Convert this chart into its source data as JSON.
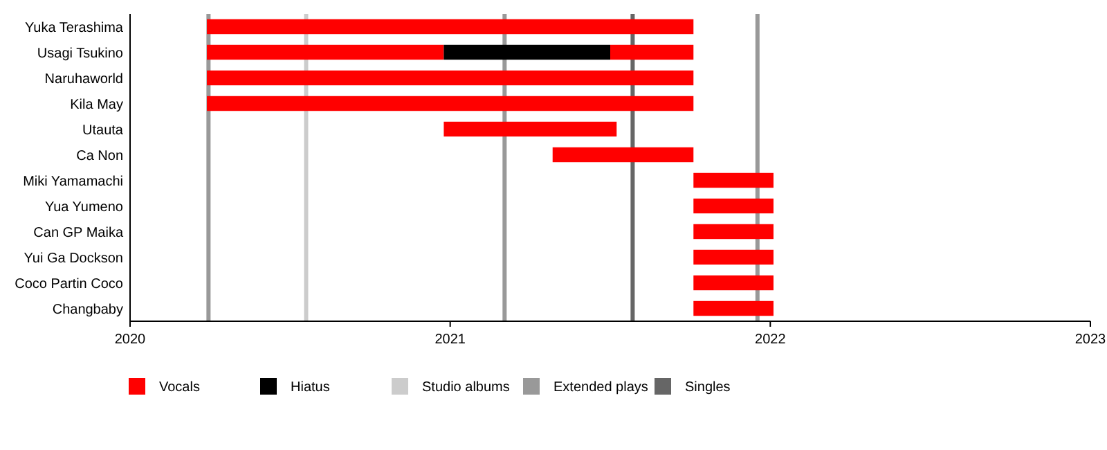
{
  "chart_data": {
    "type": "bar",
    "orientation": "horizontal",
    "categories": [
      "Yuka Terashima",
      "Usagi Tsukino",
      "Naruhaworld",
      "Kila May",
      "Utauta",
      "Ca Non",
      "Miki Yamamachi",
      "Yua Yumeno",
      "Can GP Maika",
      "Yui Ga Dockson",
      "Coco Partin Coco",
      "Changbaby"
    ],
    "series": [
      {
        "name": "Vocals",
        "color": "#ff0000",
        "base": [
          2020.24,
          2020.24,
          2020.24,
          2020.24,
          2020.98,
          2021.32,
          2021.76,
          2021.76,
          2021.76,
          2021.76,
          2021.76,
          2021.76
        ],
        "values": [
          1.52,
          0.74,
          1.52,
          1.52,
          0.54,
          0.44,
          0.25,
          0.25,
          0.25,
          0.25,
          0.25,
          0.25
        ]
      },
      {
        "name": "Hiatus",
        "color": "#000000",
        "base": [
          null,
          2020.98,
          null,
          null,
          null,
          null,
          null,
          null,
          null,
          null,
          null,
          null
        ],
        "values": [
          null,
          0.52,
          null,
          null,
          null,
          null,
          null,
          null,
          null,
          null,
          null,
          null
        ]
      },
      {
        "color": "#ff0000",
        "base": [
          null,
          2021.5,
          null,
          null,
          null,
          null,
          null,
          null,
          null,
          null,
          null,
          null
        ],
        "values": [
          null,
          0.26,
          null,
          null,
          null,
          null,
          null,
          null,
          null,
          null,
          null,
          null
        ]
      }
    ],
    "xlim": [
      2020,
      2023
    ],
    "xticks": [
      2020,
      2021,
      2022,
      2023
    ],
    "ref_lines": [
      {
        "axis": "x",
        "value": 2020.55,
        "label": "Studio albums",
        "color": "#cccccc"
      },
      {
        "axis": "x",
        "value": 2020.245,
        "label": "Extended plays",
        "color": "#999999"
      },
      {
        "axis": "x",
        "value": 2021.17,
        "color": "#999999"
      },
      {
        "axis": "x",
        "value": 2021.96,
        "color": "#999999"
      },
      {
        "axis": "x",
        "value": 2021.57,
        "label": "Singles",
        "color": "#666666"
      }
    ],
    "grid": false,
    "legend": "bottom"
  }
}
